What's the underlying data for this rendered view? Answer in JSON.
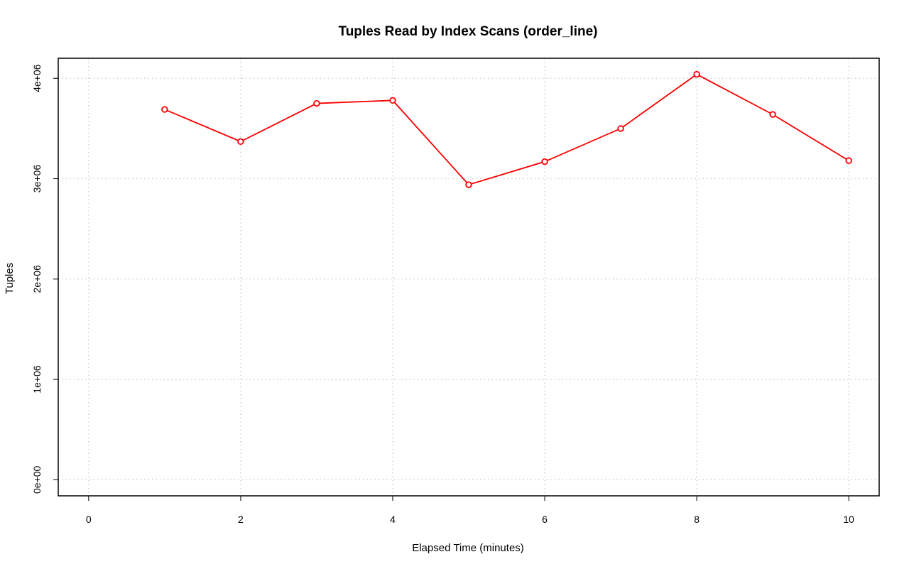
{
  "chart_data": {
    "type": "line",
    "title": "Tuples Read by Index Scans (order_line)",
    "xlabel": "Elapsed Time (minutes)",
    "ylabel": "Tuples",
    "xlim": [
      -0.4,
      10.4
    ],
    "ylim": [
      -160000,
      4200000
    ],
    "x_ticks": [
      0,
      2,
      4,
      6,
      8,
      10
    ],
    "x_tick_labels": [
      "0",
      "2",
      "4",
      "6",
      "8",
      "10"
    ],
    "y_ticks": [
      0,
      1000000,
      2000000,
      3000000,
      4000000
    ],
    "y_tick_labels": [
      "0e+00",
      "1e+06",
      "2e+06",
      "3e+06",
      "4e+06"
    ],
    "x_grid": [
      0,
      2,
      4,
      6,
      8,
      10
    ],
    "y_grid": [
      0,
      1000000,
      2000000,
      3000000,
      4000000
    ],
    "grid": true,
    "series": [
      {
        "color": "#ff0000",
        "x": [
          1,
          2,
          3,
          4,
          5,
          6,
          7,
          8,
          9,
          10
        ],
        "values": [
          3690000,
          3370000,
          3750000,
          3780000,
          2940000,
          3170000,
          3500000,
          4040000,
          3640000,
          3180000
        ]
      }
    ]
  }
}
